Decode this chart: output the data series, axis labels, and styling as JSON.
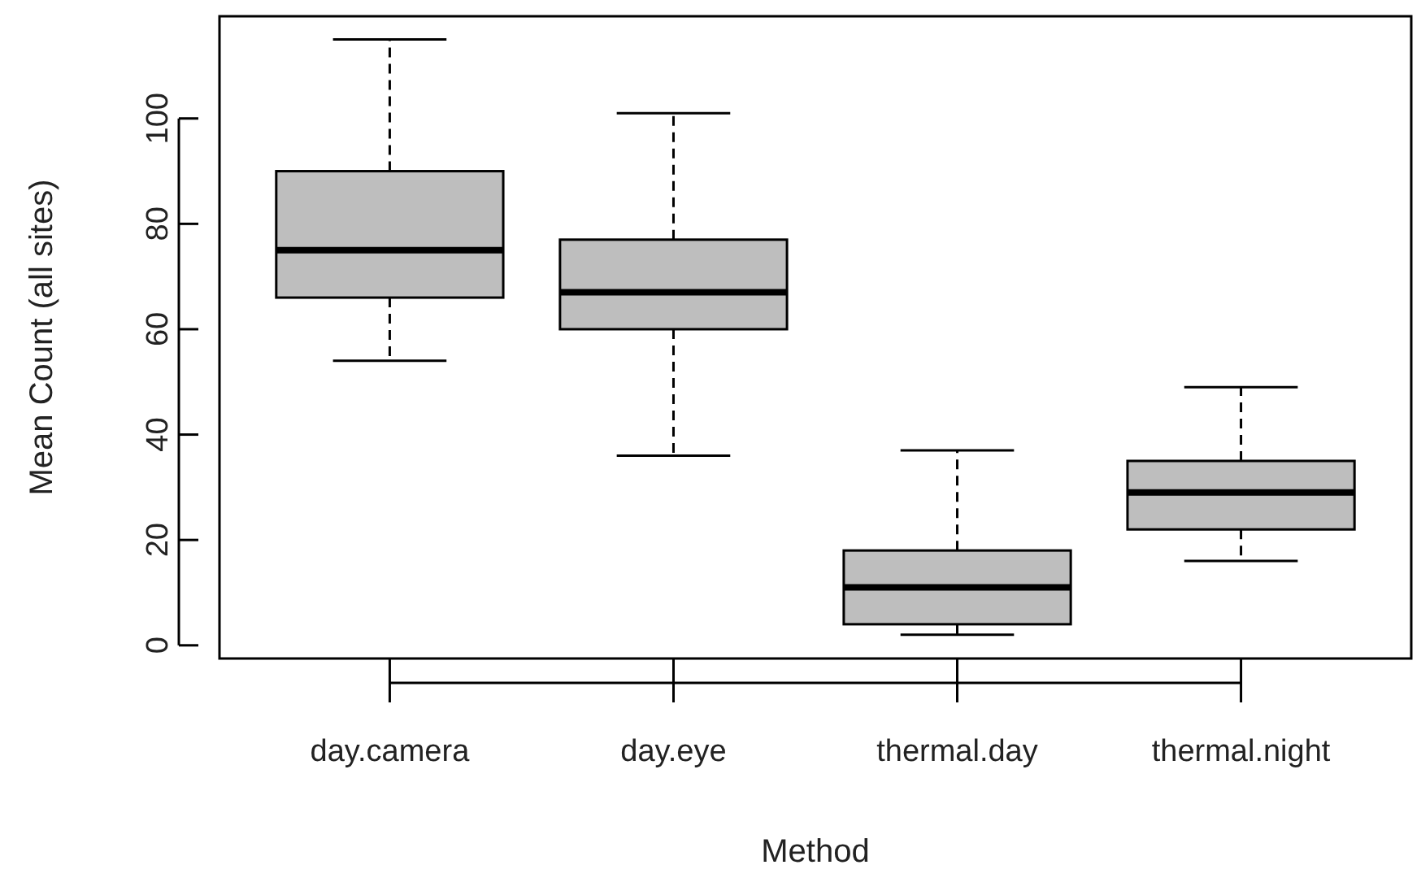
{
  "chart_data": {
    "type": "box",
    "xlabel": "Method",
    "ylabel": "Mean Count (all sites)",
    "categories": [
      "day.camera",
      "day.eye",
      "thermal.day",
      "thermal.night"
    ],
    "color": "#bebebe",
    "boxes": [
      {
        "low": 54,
        "q1": 66,
        "median": 75,
        "q3": 90,
        "high": 115
      },
      {
        "low": 36,
        "q1": 60,
        "median": 67,
        "q3": 77,
        "high": 101
      },
      {
        "low": 2,
        "q1": 4,
        "median": 11,
        "q3": 18,
        "high": 37
      },
      {
        "low": 16,
        "q1": 22,
        "median": 29,
        "q3": 35,
        "high": 49
      }
    ],
    "ylim": [
      -2.5,
      119.4
    ],
    "yticks": [
      0,
      20,
      40,
      60,
      80,
      100
    ],
    "grid": false
  }
}
